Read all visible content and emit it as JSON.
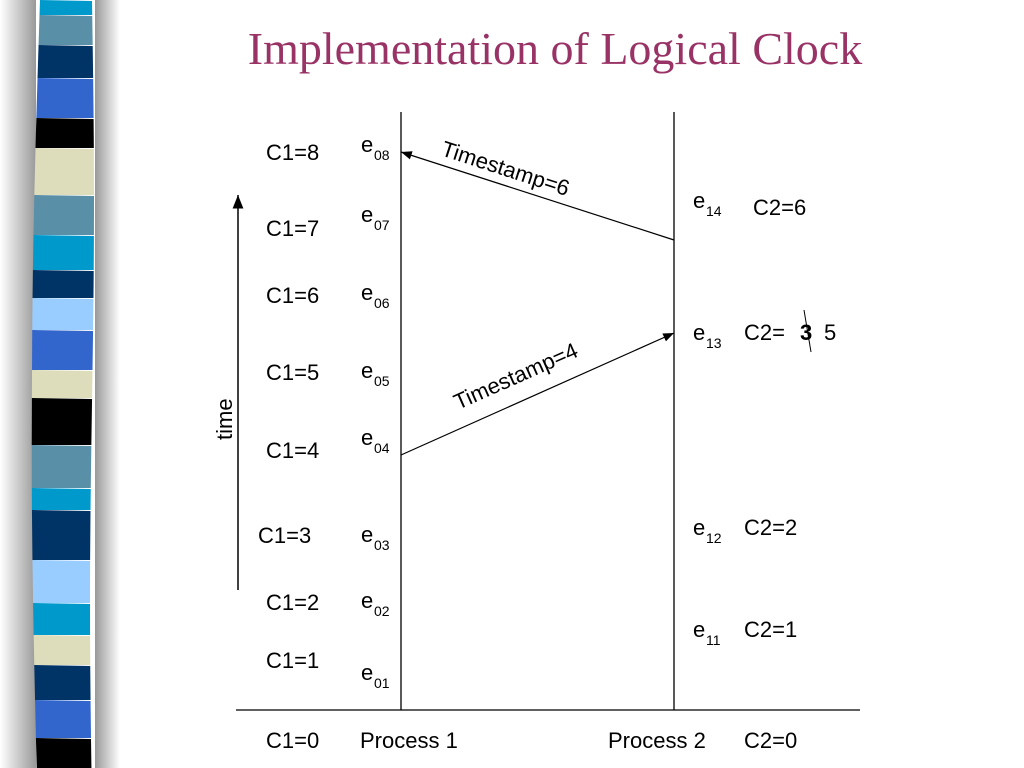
{
  "title": "Implementation of Logical Clock",
  "time_label": "time",
  "process1": {
    "label": "Process 1",
    "initial_clock": "C1=0",
    "events": [
      {
        "event": "e",
        "sub": "01",
        "clock": "C1=1"
      },
      {
        "event": "e",
        "sub": "02",
        "clock": "C1=2"
      },
      {
        "event": "e",
        "sub": "03",
        "clock": "C1=3"
      },
      {
        "event": "e",
        "sub": "04",
        "clock": "C1=4"
      },
      {
        "event": "e",
        "sub": "05",
        "clock": "C1=5"
      },
      {
        "event": "e",
        "sub": "06",
        "clock": "C1=6"
      },
      {
        "event": "e",
        "sub": "07",
        "clock": "C1=7"
      },
      {
        "event": "e",
        "sub": "08",
        "clock": "C1=8"
      }
    ]
  },
  "process2": {
    "label": "Process 2",
    "initial_clock": "C2=0",
    "events": [
      {
        "event": "e",
        "sub": "11",
        "clock": "C2=1"
      },
      {
        "event": "e",
        "sub": "12",
        "clock": "C2=2"
      },
      {
        "event": "e",
        "sub": "13",
        "clock": "C2=",
        "struck_value": "3",
        "new_value": "5"
      },
      {
        "event": "e",
        "sub": "14",
        "clock": "C2=6"
      }
    ]
  },
  "messages": [
    {
      "label": "Timestamp=4",
      "from": "e04",
      "to": "e13"
    },
    {
      "label": "Timestamp=6",
      "from": "e14",
      "to": "e08"
    }
  ],
  "colors": {
    "title": "#993366",
    "struck_value": "#ff0000"
  },
  "stripe_colors": [
    "#0099cc",
    "#5a8fa8",
    "#003366",
    "#3366cc",
    "#000000",
    "#ddddbb",
    "#5a8fa8",
    "#0099cc",
    "#003366",
    "#99ccff",
    "#3366cc",
    "#ddddbb",
    "#000000",
    "#5a8fa8",
    "#0099cc",
    "#003366",
    "#99ccff",
    "#0099cc",
    "#ddddbb",
    "#003366",
    "#3366cc",
    "#000000"
  ]
}
